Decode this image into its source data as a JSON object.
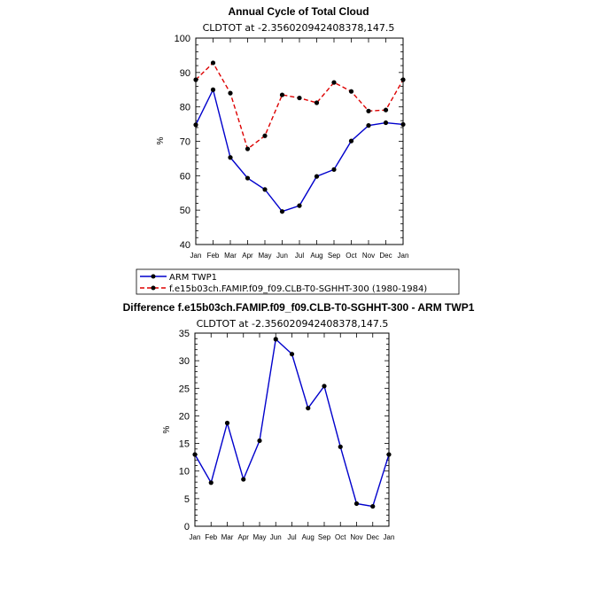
{
  "chart_data": [
    {
      "type": "line",
      "title": "Annual Cycle of Total Cloud",
      "subtitle": "CLDTOT at -2.356020942408378,147.5",
      "xlabel": "",
      "ylabel": "%",
      "categories": [
        "Jan",
        "Feb",
        "Mar",
        "Apr",
        "May",
        "Jun",
        "Jul",
        "Aug",
        "Sep",
        "Oct",
        "Nov",
        "Dec",
        "Jan"
      ],
      "ylim": [
        40,
        100
      ],
      "yticks": [
        40,
        50,
        60,
        70,
        80,
        90,
        100
      ],
      "grid": false,
      "series": [
        {
          "name": "ARM TWP1",
          "color": "#0000cc",
          "dash": "solid",
          "values": [
            74.8,
            85.0,
            65.3,
            59.3,
            56.0,
            49.6,
            51.3,
            59.8,
            61.8,
            70.1,
            74.6,
            75.4,
            74.9
          ]
        },
        {
          "name": "f.e15b03ch.FAMIP.f09_f09.CLB-T0-SGHHT-300 (1980-1984)",
          "color": "#dd0000",
          "dash": "dashed",
          "values": [
            87.9,
            92.8,
            84.0,
            67.8,
            71.6,
            83.5,
            82.6,
            81.2,
            87.1,
            84.5,
            78.8,
            79.1,
            87.9
          ]
        }
      ],
      "legend": "below"
    },
    {
      "type": "line",
      "title": "Difference f.e15b03ch.FAMIP.f09_f09.CLB-T0-SGHHT-300 - ARM TWP1",
      "subtitle": "CLDTOT at -2.356020942408378,147.5",
      "xlabel": "",
      "ylabel": "%",
      "categories": [
        "Jan",
        "Feb",
        "Mar",
        "Apr",
        "May",
        "Jun",
        "Jul",
        "Aug",
        "Sep",
        "Oct",
        "Nov",
        "Dec",
        "Jan"
      ],
      "ylim": [
        0,
        35
      ],
      "yticks": [
        0,
        5,
        10,
        15,
        20,
        25,
        30,
        35
      ],
      "grid": false,
      "series": [
        {
          "name": "Difference",
          "color": "#0000cc",
          "dash": "solid",
          "values": [
            13.0,
            7.9,
            18.7,
            8.5,
            15.5,
            33.9,
            31.2,
            21.4,
            25.4,
            14.4,
            4.1,
            3.6,
            13.0
          ]
        }
      ]
    }
  ]
}
